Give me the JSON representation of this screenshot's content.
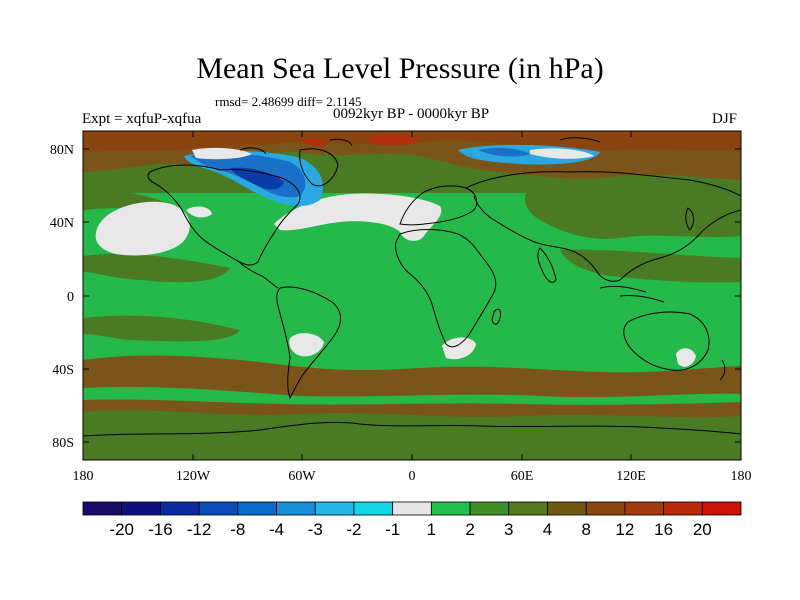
{
  "title": "Mean Sea Level Pressure (in hPa)",
  "stats": "rmsd= 2.48699 diff= 2.1145",
  "experiment": "Expt = xqfuP-xqfua",
  "period": "0092kyr BP - 0000kyr BP",
  "season": "DJF",
  "lat_labels": [
    "80N",
    "40N",
    "0",
    "40S",
    "80S"
  ],
  "lon_labels": [
    "180",
    "120W",
    "60W",
    "0",
    "60E",
    "120E",
    "180"
  ],
  "colorbar": {
    "colors": [
      "#1c0c6a",
      "#101080",
      "#0b2aa0",
      "#0a4cb8",
      "#0a6cc8",
      "#1590d8",
      "#25b6e8",
      "#12d6e6",
      "#e6e6e6",
      "#22c04a",
      "#3f8f26",
      "#557a1c",
      "#6e5a12",
      "#8a4810",
      "#a33a0c",
      "#b82a0a",
      "#cc1408"
    ],
    "labels": [
      "-20",
      "-16",
      "-12",
      "-8",
      "-4",
      "-3",
      "-2",
      "-1",
      "1",
      "2",
      "3",
      "4",
      "8",
      "12",
      "16",
      "20"
    ]
  },
  "field_colors": {
    "green": "#25b84a",
    "olive": "#4a7a24",
    "brown": "#7a5418",
    "darkbrown": "#8a4410",
    "red": "#b03010",
    "white": "#e8e8e8",
    "lightblue": "#2aa8e0",
    "blue": "#1a70c8",
    "darkblue": "#0a3ca8"
  }
}
